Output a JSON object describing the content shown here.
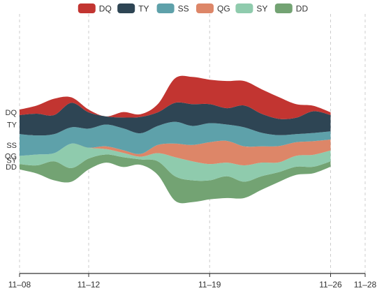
{
  "chart_data": {
    "type": "area",
    "subtype": "themeRiver",
    "x_ticks": [
      "11–08",
      "11–12",
      "11–19",
      "11–26",
      "11–28"
    ],
    "x": [
      "11-08",
      "11-09",
      "11-10",
      "11-11",
      "11-12",
      "11-13",
      "11-14",
      "11-15",
      "11-16",
      "11-17",
      "11-18",
      "11-19",
      "11-20",
      "11-21",
      "11-22",
      "11-23",
      "11-24",
      "11-25",
      "11-26"
    ],
    "legend_position": "top-center",
    "grid": true,
    "series": [
      {
        "name": "DD",
        "color": "#73a373",
        "values": [
          10,
          15,
          35,
          25,
          20,
          15,
          18,
          10,
          25,
          45,
          40,
          35,
          40,
          30,
          25,
          18,
          15,
          12,
          10
        ]
      },
      {
        "name": "SY",
        "color": "#8fcbad",
        "values": [
          15,
          20,
          15,
          45,
          20,
          10,
          8,
          5,
          15,
          35,
          35,
          30,
          25,
          30,
          25,
          18,
          20,
          22,
          20
        ]
      },
      {
        "name": "QG",
        "color": "#dd8668",
        "values": [
          0,
          0,
          0,
          0,
          0,
          5,
          5,
          5,
          15,
          25,
          30,
          40,
          40,
          35,
          30,
          30,
          25,
          25,
          20
        ]
      },
      {
        "name": "SS",
        "color": "#5ea1aa",
        "values": [
          40,
          35,
          35,
          30,
          35,
          40,
          40,
          38,
          35,
          40,
          35,
          35,
          30,
          35,
          25,
          20,
          15,
          15,
          15
        ]
      },
      {
        "name": "TY",
        "color": "#2e4554",
        "values": [
          35,
          40,
          35,
          45,
          30,
          15,
          20,
          30,
          25,
          35,
          40,
          35,
          30,
          40,
          35,
          30,
          30,
          40,
          30
        ]
      },
      {
        "name": "DQ",
        "color": "#c23531",
        "values": [
          10,
          15,
          30,
          10,
          5,
          0,
          10,
          5,
          15,
          45,
          50,
          45,
          50,
          45,
          45,
          40,
          25,
          10,
          5
        ]
      }
    ]
  }
}
